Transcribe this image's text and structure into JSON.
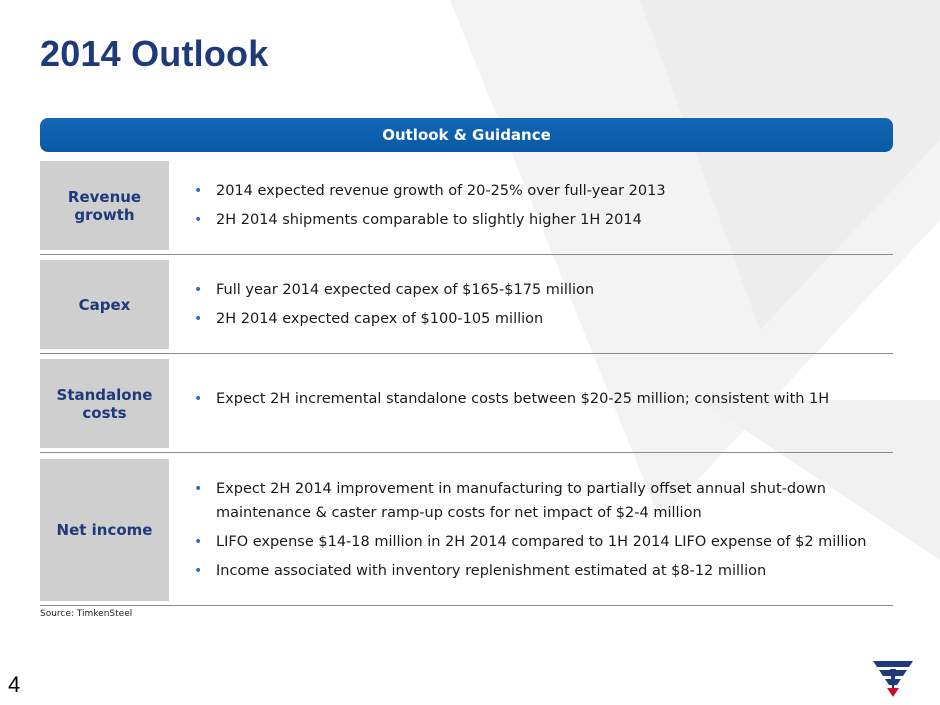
{
  "slide": {
    "title": "2014 Outlook",
    "banner": "Outlook & Guidance",
    "page_number": "4",
    "source": "Source: TimkenSteel",
    "accent_color": "#1f3a7a",
    "banner_color": "#0a5aa5"
  },
  "rows": [
    {
      "label": "Revenue\ngrowth",
      "bullets": [
        "2014 expected revenue growth of 20-25%  over full-year 2013",
        "2H 2014 shipments comparable to slightly higher 1H 2014"
      ]
    },
    {
      "label": "Capex",
      "bullets": [
        "Full year 2014 expected capex of $165-$175 million",
        "2H 2014 expected capex of $100-105 million"
      ]
    },
    {
      "label": "Standalone\ncosts",
      "bullets": [
        "Expect 2H incremental standalone costs between $20-25 million; consistent with 1H"
      ]
    },
    {
      "label": "Net income",
      "bullets": [
        "Expect 2H 2014 improvement in manufacturing to partially offset  annual shut-down maintenance & caster ramp-up costs for net impact of $2-4 million",
        "LIFO expense $14-18 million in 2H 2014 compared to 1H 2014 LIFO  expense of $2 million",
        "Income associated with inventory replenishment estimated at $8-12 million"
      ]
    }
  ]
}
